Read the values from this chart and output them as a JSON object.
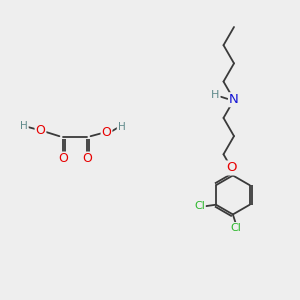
{
  "bg_color": "#eeeeee",
  "figsize": [
    3.0,
    3.0
  ],
  "dpi": 100,
  "bond_color": "#3a3a3a",
  "atom_colors": {
    "C": "#3a3a3a",
    "H": "#5f8a8b",
    "N": "#1414d4",
    "O": "#e80000",
    "Cl": "#2db82d"
  },
  "lw": 1.3
}
